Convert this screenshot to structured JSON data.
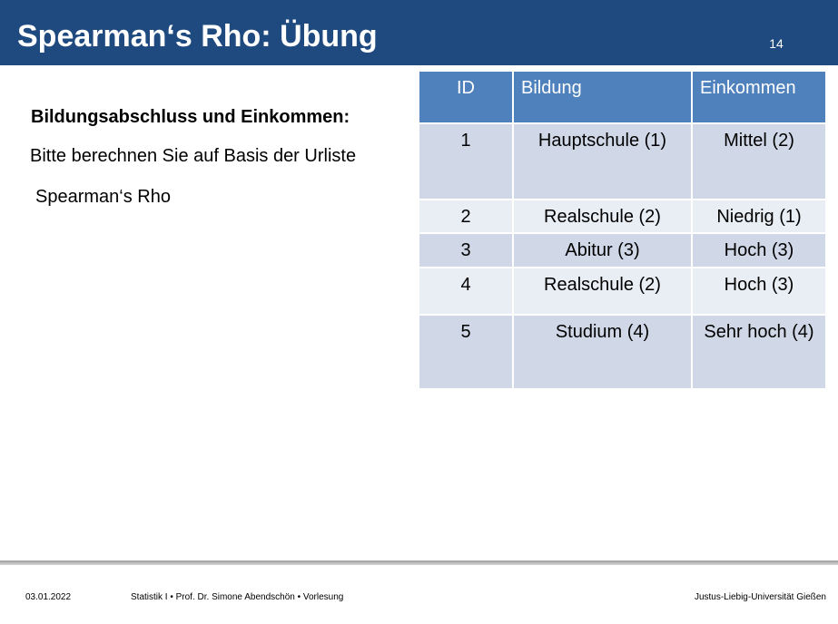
{
  "slide": {
    "title": "Spearman‘s Rho: Übung",
    "page_number": "14",
    "subheading": "Bildungsabschluss und Einkommen:",
    "instruction": "Bitte berechnen Sie auf Basis der Urliste",
    "term": "Spearman‘s Rho"
  },
  "table": {
    "headers": {
      "id": "ID",
      "bildung": "Bildung",
      "einkommen": "Einkommen"
    },
    "rows": [
      {
        "id": "1",
        "bildung": "Hauptschule (1)",
        "einkommen": "Mittel (2)"
      },
      {
        "id": "2",
        "bildung": "Realschule (2)",
        "einkommen": "Niedrig (1)"
      },
      {
        "id": "3",
        "bildung": "Abitur (3)",
        "einkommen": "Hoch (3)"
      },
      {
        "id": "4",
        "bildung": "Realschule (2)",
        "einkommen": "Hoch (3)"
      },
      {
        "id": "5",
        "bildung": "Studium (4)",
        "einkommen": "Sehr hoch (4)"
      }
    ]
  },
  "footer": {
    "date": "03.01.2022",
    "course": "Statistik I • Prof. Dr. Simone Abendschön • Vorlesung",
    "university": "Justus-Liebig-Universität Gießen"
  },
  "colors": {
    "header_bar": "#1f4a7f",
    "table_header": "#4f81bd",
    "row_dark": "#d0d8e8",
    "row_light": "#e9edf4"
  }
}
